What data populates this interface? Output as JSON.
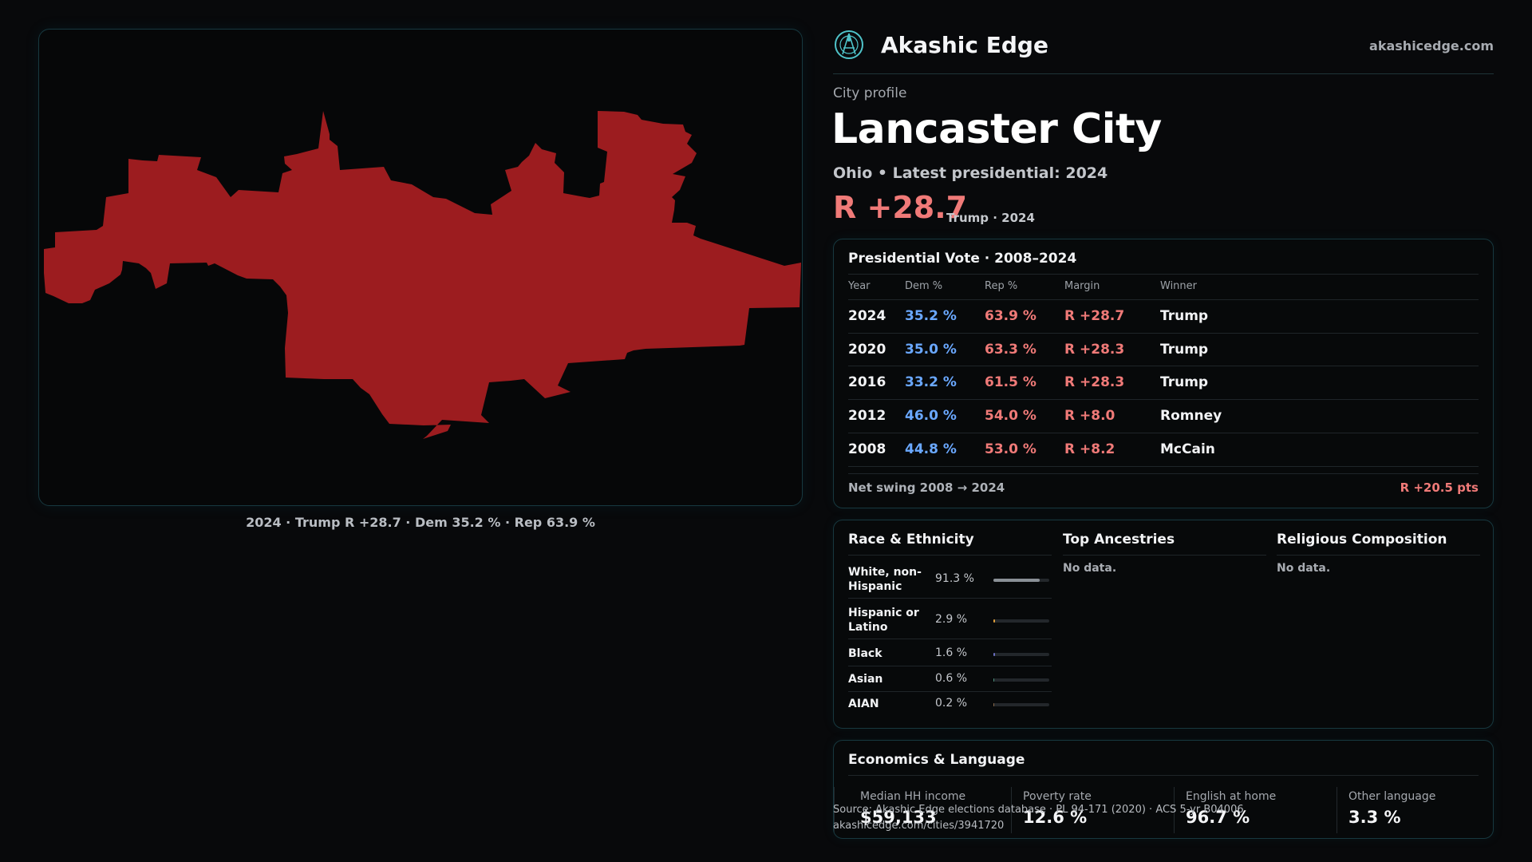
{
  "map": {
    "caption": "2024 · Trump R +28.7 · Dem 35.2 % · Rep 63.9 %",
    "fill_color": "#9c1c1f"
  },
  "header": {
    "brand": "Akashic Edge",
    "site": "akashicedge.com",
    "logo_icon": "akashic-logo-icon"
  },
  "profile": {
    "kicker": "City profile",
    "city": "Lancaster City",
    "subtitle": "Ohio • Latest presidential: 2024",
    "margin": "R +28.7",
    "margin_sub": "Trump · 2024"
  },
  "vote": {
    "title": "Presidential Vote · 2008–2024",
    "headers": {
      "year": "Year",
      "dem": "Dem %",
      "rep": "Rep %",
      "margin": "Margin",
      "winner": "Winner"
    },
    "rows": [
      {
        "year": "2024",
        "dem": "35.2 %",
        "rep": "63.9 %",
        "margin": "R +28.7",
        "winner": "Trump"
      },
      {
        "year": "2020",
        "dem": "35.0 %",
        "rep": "63.3 %",
        "margin": "R +28.3",
        "winner": "Trump"
      },
      {
        "year": "2016",
        "dem": "33.2 %",
        "rep": "61.5 %",
        "margin": "R +28.3",
        "winner": "Trump"
      },
      {
        "year": "2012",
        "dem": "46.0 %",
        "rep": "54.0 %",
        "margin": "R +8.0",
        "winner": "Romney"
      },
      {
        "year": "2008",
        "dem": "44.8 %",
        "rep": "53.0 %",
        "margin": "R +8.2",
        "winner": "McCain"
      }
    ],
    "swing_label": "Net swing 2008 → 2024",
    "swing_value": "R +20.5 pts"
  },
  "race": {
    "title": "Race & Ethnicity",
    "rows": [
      {
        "label": "White, non-Hispanic",
        "pct": "91.3 %",
        "fraction": 0.913,
        "color": "#8a9096"
      },
      {
        "label": "Hispanic or Latino",
        "pct": "2.9 %",
        "fraction": 0.029,
        "color": "#e0a03a"
      },
      {
        "label": "Black",
        "pct": "1.6 %",
        "fraction": 0.016,
        "color": "#6a6fc2"
      },
      {
        "label": "Asian",
        "pct": "0.6 %",
        "fraction": 0.006,
        "color": "#4a8f7a"
      },
      {
        "label": "AIAN",
        "pct": "0.2 %",
        "fraction": 0.002,
        "color": "#8b6a4a"
      }
    ]
  },
  "ancestry": {
    "title": "Top Ancestries",
    "empty": "No data."
  },
  "religion": {
    "title": "Religious Composition",
    "empty": "No data."
  },
  "econ": {
    "title": "Economics & Language",
    "stats": [
      {
        "label": "Median HH income",
        "value": "$59,133"
      },
      {
        "label": "Poverty rate",
        "value": "12.6 %"
      },
      {
        "label": "English at home",
        "value": "96.7 %"
      },
      {
        "label": "Other language",
        "value": "3.3 %"
      }
    ]
  },
  "source": {
    "line1": "Source: Akashic Edge elections database · PL 94-171 (2020) · ACS 5-yr B04006",
    "line2": "akashicedge.com/cities/3941720"
  }
}
